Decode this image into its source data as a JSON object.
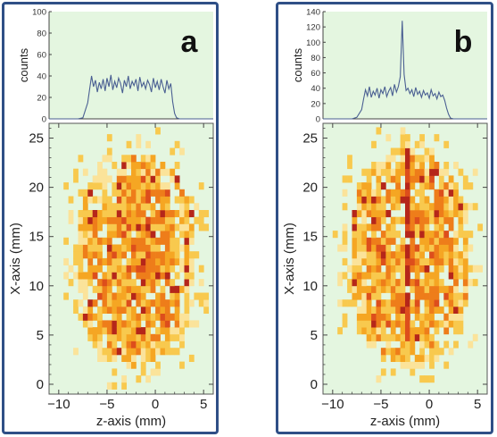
{
  "chart_data": [
    {
      "panel_label": "a",
      "histogram": {
        "type": "line",
        "ylabel": "counts",
        "ylim": [
          0,
          100
        ],
        "yticks": [
          0,
          20,
          40,
          60,
          80,
          100
        ],
        "xlim": [
          -11,
          6
        ],
        "x": [
          -11.0,
          -10.5,
          -10.0,
          -9.5,
          -9.0,
          -8.5,
          -8.0,
          -7.5,
          -7.0,
          -6.8,
          -6.6,
          -6.4,
          -6.2,
          -6.0,
          -5.8,
          -5.6,
          -5.4,
          -5.2,
          -5.0,
          -4.8,
          -4.6,
          -4.4,
          -4.2,
          -4.0,
          -3.8,
          -3.6,
          -3.4,
          -3.2,
          -3.0,
          -2.8,
          -2.6,
          -2.4,
          -2.2,
          -2.0,
          -1.8,
          -1.6,
          -1.4,
          -1.2,
          -1.0,
          -0.8,
          -0.6,
          -0.4,
          -0.2,
          0.0,
          0.2,
          0.4,
          0.6,
          0.8,
          1.0,
          1.2,
          1.4,
          1.6,
          1.8,
          2.0,
          2.2,
          2.5,
          3.0,
          3.5,
          4.0,
          4.5,
          5.0,
          5.5,
          6.0
        ],
        "counts": [
          0,
          0,
          0,
          0,
          0,
          0,
          0,
          1,
          15,
          28,
          40,
          30,
          36,
          25,
          34,
          28,
          37,
          26,
          38,
          30,
          41,
          27,
          35,
          29,
          38,
          33,
          24,
          36,
          30,
          40,
          28,
          35,
          31,
          37,
          26,
          39,
          30,
          34,
          28,
          36,
          32,
          25,
          38,
          29,
          35,
          27,
          37,
          30,
          24,
          36,
          28,
          33,
          16,
          5,
          1,
          0,
          0,
          0,
          0,
          0,
          0,
          0,
          0
        ]
      },
      "heatmap": {
        "type": "heatmap",
        "xlabel": "z-axis (mm)",
        "ylabel": "X-axis (mm)",
        "xlim": [
          -11,
          6
        ],
        "ylim": [
          -1,
          26.5
        ],
        "xticks": [
          -10,
          -5,
          0,
          5
        ],
        "yticks": [
          0,
          5,
          10,
          15,
          20,
          25
        ],
        "z_range": [
          -7,
          2.5
        ],
        "x_range": [
          1.5,
          23
        ],
        "ridge_z": null,
        "colormap": [
          "#fbe39a",
          "#f8c94e",
          "#f5a623",
          "#ee7d1a",
          "#dd4e1c",
          "#b5261a"
        ]
      }
    },
    {
      "panel_label": "b",
      "histogram": {
        "type": "line",
        "ylabel": "counts",
        "ylim": [
          0,
          140
        ],
        "yticks": [
          0,
          20,
          40,
          60,
          80,
          100,
          120,
          140
        ],
        "xlim": [
          -11,
          6
        ],
        "x": [
          -11.0,
          -10.5,
          -10.0,
          -9.5,
          -9.0,
          -8.5,
          -8.0,
          -7.5,
          -7.0,
          -6.8,
          -6.6,
          -6.4,
          -6.2,
          -6.0,
          -5.8,
          -5.6,
          -5.4,
          -5.2,
          -5.0,
          -4.8,
          -4.6,
          -4.4,
          -4.2,
          -4.0,
          -3.8,
          -3.6,
          -3.4,
          -3.2,
          -3.0,
          -2.8,
          -2.6,
          -2.4,
          -2.2,
          -2.0,
          -1.8,
          -1.6,
          -1.4,
          -1.2,
          -1.0,
          -0.8,
          -0.6,
          -0.4,
          -0.2,
          0.0,
          0.2,
          0.4,
          0.6,
          0.8,
          1.0,
          1.2,
          1.4,
          1.6,
          1.8,
          2.0,
          2.2,
          2.5,
          3.0,
          3.5,
          4.0,
          4.5,
          5.0,
          5.5,
          6.0
        ],
        "counts": [
          0,
          0,
          0,
          0,
          0,
          0,
          0,
          2,
          12,
          26,
          38,
          30,
          42,
          28,
          36,
          31,
          40,
          27,
          38,
          33,
          42,
          29,
          36,
          41,
          30,
          45,
          35,
          42,
          55,
          128,
          58,
          37,
          40,
          33,
          38,
          29,
          41,
          32,
          36,
          28,
          37,
          31,
          34,
          27,
          38,
          30,
          33,
          26,
          35,
          29,
          31,
          24,
          14,
          6,
          1,
          0,
          0,
          0,
          0,
          0,
          0,
          0,
          0
        ]
      },
      "heatmap": {
        "type": "heatmap",
        "xlabel": "z-axis (mm)",
        "ylabel": "X-axis (mm)",
        "xlim": [
          -11,
          6
        ],
        "ylim": [
          -1,
          26.5
        ],
        "xticks": [
          -10,
          -5,
          0,
          5
        ],
        "yticks": [
          0,
          5,
          10,
          15,
          20,
          25
        ],
        "z_range": [
          -7,
          2.5
        ],
        "x_range": [
          1.5,
          23.5
        ],
        "ridge_z": -2.5,
        "colormap": [
          "#fbe39a",
          "#f8c94e",
          "#f5a623",
          "#ee7d1a",
          "#dd4e1c",
          "#b5261a"
        ]
      }
    }
  ],
  "style": {
    "plot_background": "#e4f6e0",
    "line_color": "#4a5f92",
    "frame_color": "#2f4f86"
  }
}
